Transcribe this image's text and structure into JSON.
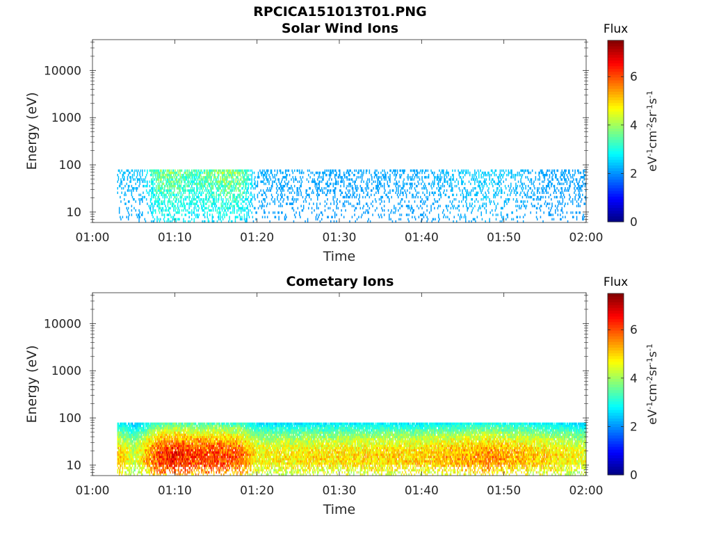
{
  "figure_title": "RPCICA151013T01.PNG",
  "colorbar": {
    "header": "Flux",
    "ticks": [
      "0",
      "2",
      "4",
      "6"
    ],
    "range": [
      0,
      7.5
    ],
    "colormap": "jet"
  },
  "colors": {
    "text": "#262626",
    "axis": "#262626",
    "background": "#ffffff"
  },
  "chart_data": [
    {
      "type": "heatmap",
      "title": "Solar Wind Ions",
      "xlabel": "Time",
      "ylabel": "Energy (eV)",
      "colorbar_label": "eV-1cm-2sr-1s-1",
      "x_ticks": [
        "01:00",
        "01:10",
        "01:20",
        "01:30",
        "01:40",
        "01:50",
        "02:00"
      ],
      "xlim": [
        "01:00",
        "02:00"
      ],
      "y_scale": "log",
      "y_ticks": [
        "10",
        "100",
        "1000",
        "10000"
      ],
      "ylim": [
        6,
        45000
      ],
      "data_time_range": [
        "01:03",
        "02:00"
      ],
      "data_energy_range": [
        6,
        80
      ],
      "flux_profile": [
        {
          "time": "01:03",
          "max_flux": 2.5
        },
        {
          "time": "01:06",
          "max_flux": 2.5
        },
        {
          "time": "01:08",
          "max_flux": 4.5
        },
        {
          "time": "01:10",
          "max_flux": 4.5
        },
        {
          "time": "01:12",
          "max_flux": 4.0
        },
        {
          "time": "01:15",
          "max_flux": 4.5
        },
        {
          "time": "01:16",
          "max_flux": 4.8
        },
        {
          "time": "01:18",
          "max_flux": 4.5
        },
        {
          "time": "01:20",
          "max_flux": 2.3
        },
        {
          "time": "01:30",
          "max_flux": 2.2
        },
        {
          "time": "01:40",
          "max_flux": 2.3
        },
        {
          "time": "01:48",
          "max_flux": 2.8
        },
        {
          "time": "01:55",
          "max_flux": 2.2
        },
        {
          "time": "02:00",
          "max_flux": 2.2
        }
      ]
    },
    {
      "type": "heatmap",
      "title": "Cometary Ions",
      "xlabel": "Time",
      "ylabel": "Energy (eV)",
      "colorbar_label": "eV-1cm-2sr-1s-1",
      "x_ticks": [
        "01:00",
        "01:10",
        "01:20",
        "01:30",
        "01:40",
        "01:50",
        "02:00"
      ],
      "xlim": [
        "01:00",
        "02:00"
      ],
      "y_scale": "log",
      "y_ticks": [
        "10",
        "100",
        "1000",
        "10000"
      ],
      "ylim": [
        6,
        45000
      ],
      "data_time_range": [
        "01:03",
        "02:00"
      ],
      "data_energy_range": [
        6,
        80
      ],
      "flux_profile": [
        {
          "time": "01:03",
          "max_flux": 5.5
        },
        {
          "time": "01:05",
          "max_flux": 4.5
        },
        {
          "time": "01:08",
          "max_flux": 6.5
        },
        {
          "time": "01:10",
          "max_flux": 6.8
        },
        {
          "time": "01:12",
          "max_flux": 6.5
        },
        {
          "time": "01:15",
          "max_flux": 6.5
        },
        {
          "time": "01:18",
          "max_flux": 6.2
        },
        {
          "time": "01:20",
          "max_flux": 5.0
        },
        {
          "time": "01:30",
          "max_flux": 5.2
        },
        {
          "time": "01:40",
          "max_flux": 5.3
        },
        {
          "time": "01:48",
          "max_flux": 5.8
        },
        {
          "time": "01:55",
          "max_flux": 5.3
        },
        {
          "time": "02:00",
          "max_flux": 4.8
        }
      ]
    }
  ]
}
